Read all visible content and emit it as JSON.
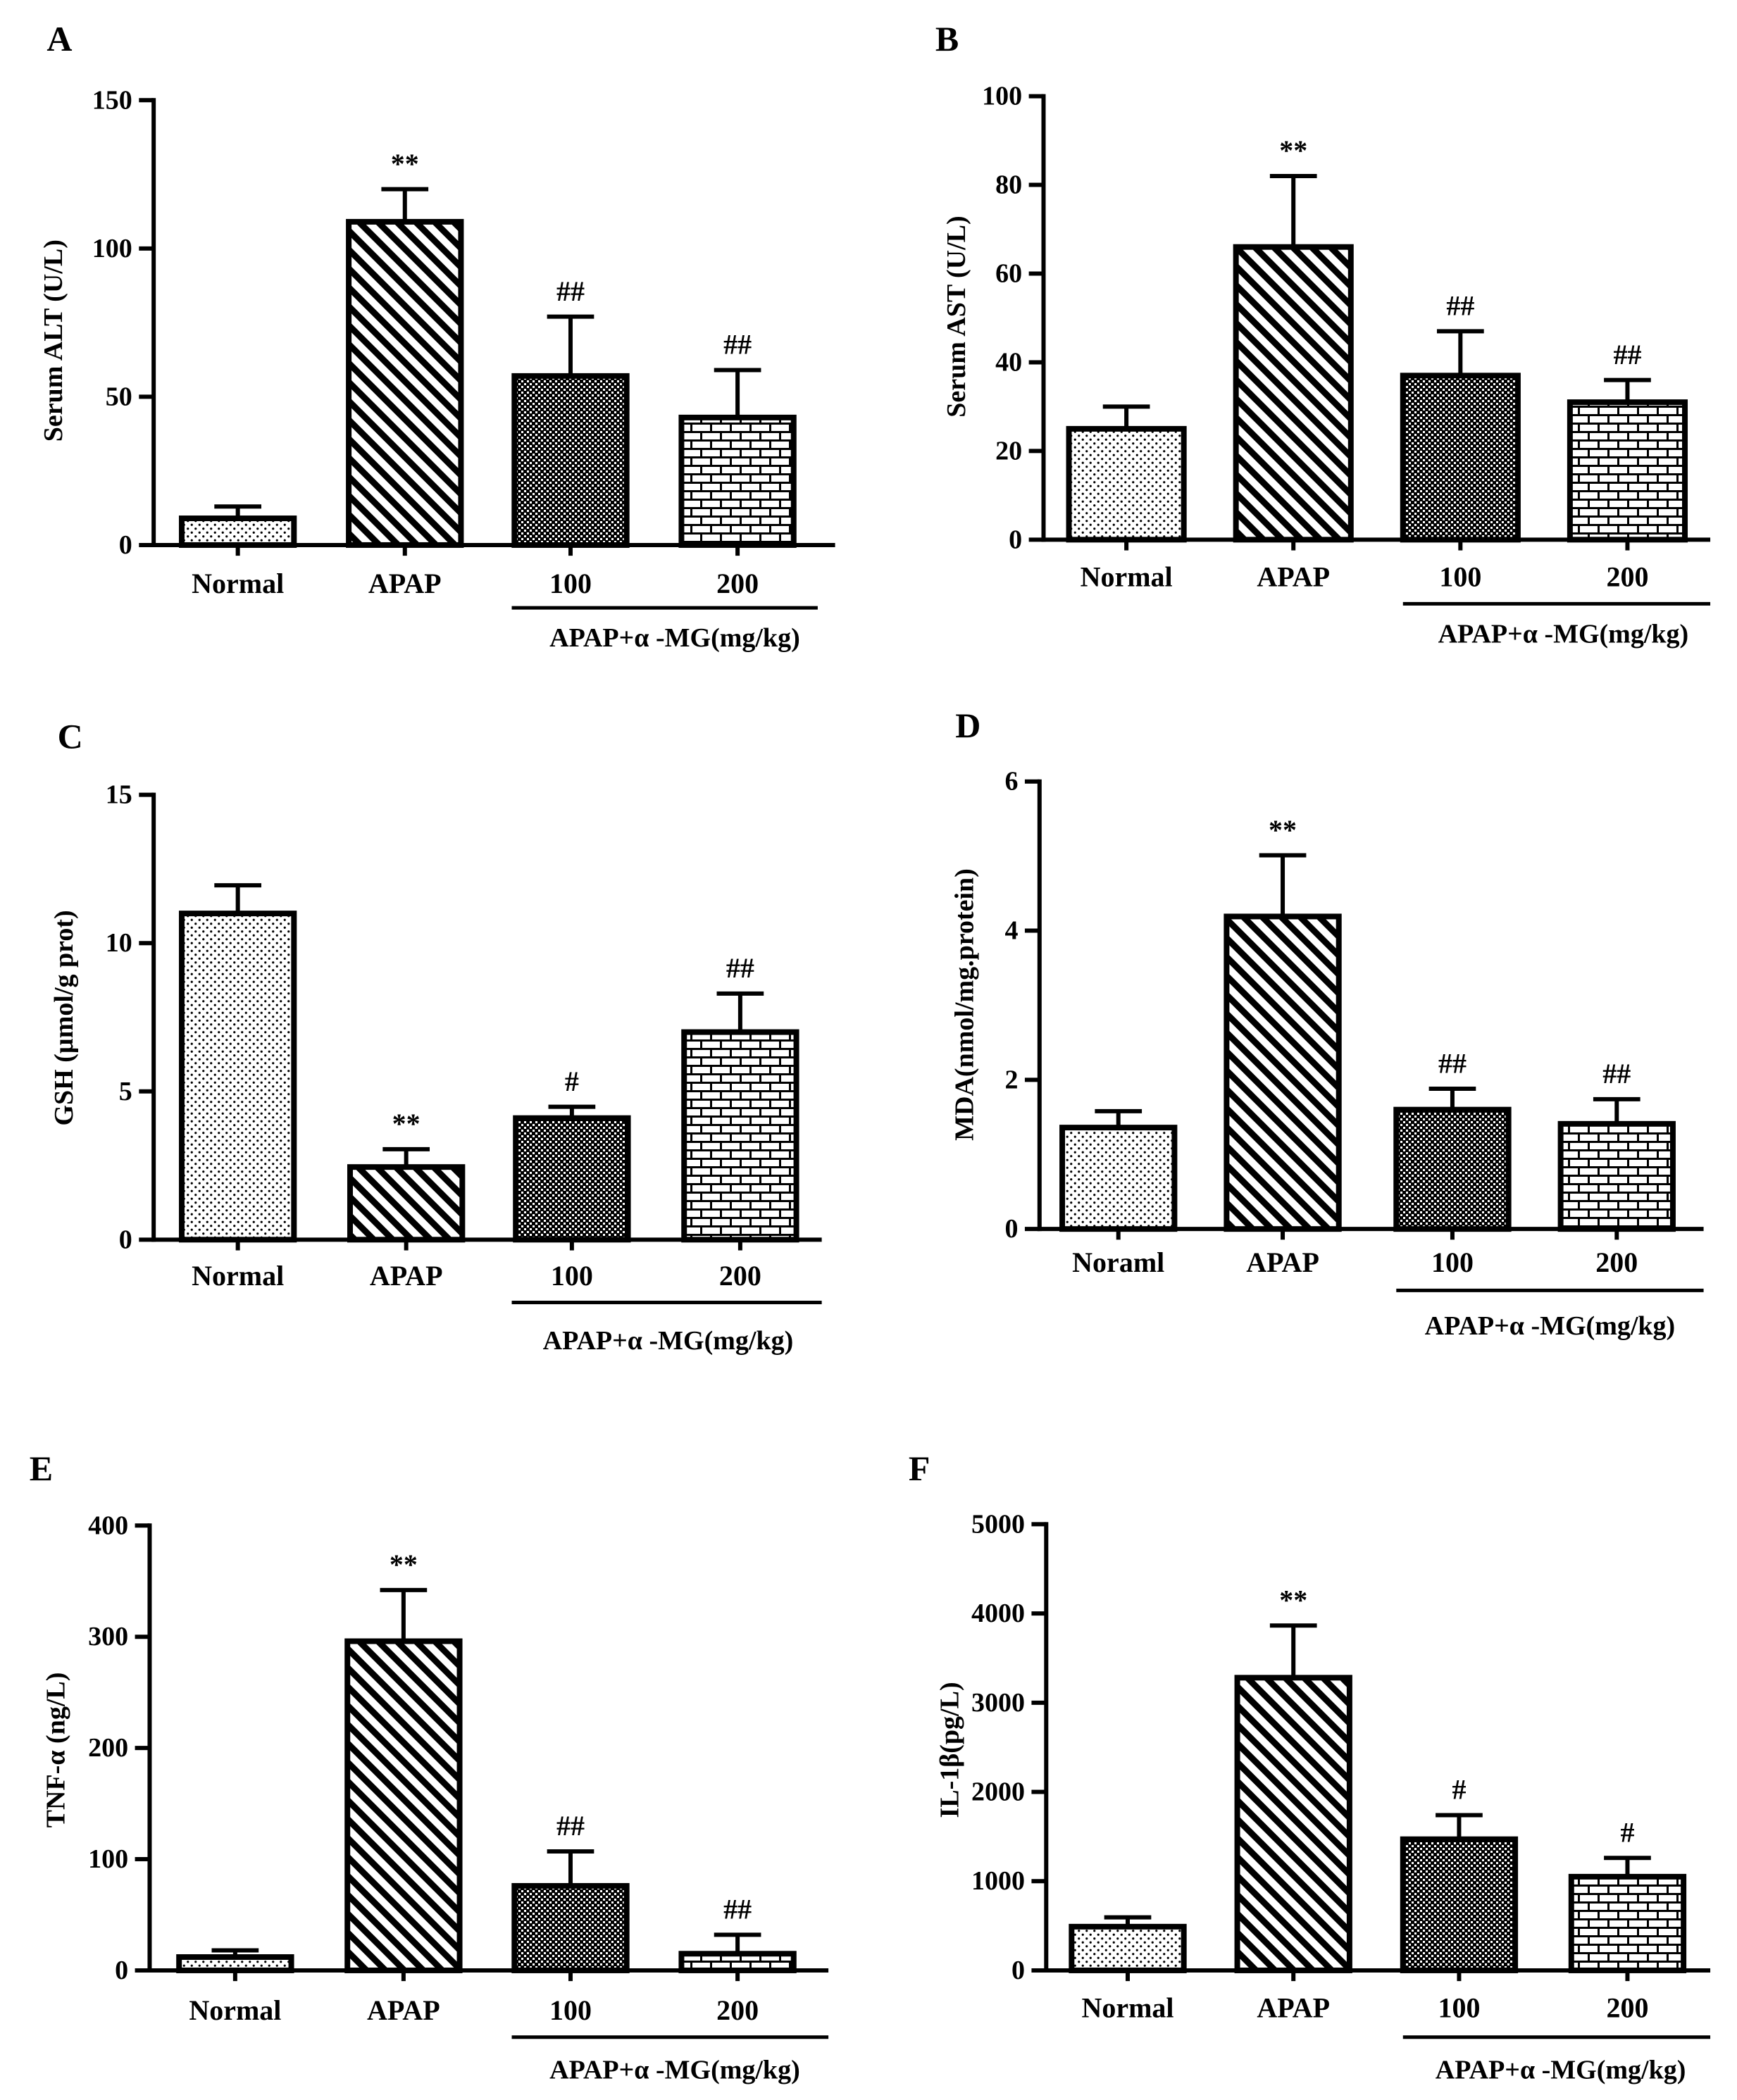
{
  "colors": {
    "ink": "#000000",
    "background": "#ffffff"
  },
  "chart_data": [
    {
      "panel": "A",
      "type": "bar",
      "ylabel": "Serum ALT (U/L)",
      "ylim": [
        0,
        150
      ],
      "y_ticks": [
        0,
        50,
        100,
        150
      ],
      "categories": [
        "Normal",
        "APAP",
        "100",
        "200"
      ],
      "values": [
        9,
        109,
        57,
        43
      ],
      "errors": [
        4,
        11,
        20,
        16
      ],
      "annotations": [
        "",
        "**",
        "##",
        "##"
      ],
      "group_label": "APAP+α -MG(mg/kg)"
    },
    {
      "panel": "B",
      "type": "bar",
      "ylabel": "Serum AST (U/L)",
      "ylim": [
        0,
        100
      ],
      "y_ticks": [
        0,
        20,
        40,
        60,
        80,
        100
      ],
      "categories": [
        "Normal",
        "APAP",
        "100",
        "200"
      ],
      "values": [
        25,
        66,
        37,
        31
      ],
      "errors": [
        5,
        16,
        10,
        5
      ],
      "annotations": [
        "",
        "**",
        "##",
        "##"
      ],
      "group_label": "APAP+α -MG(mg/kg)"
    },
    {
      "panel": "C",
      "type": "bar",
      "ylabel": "GSH (µmol/g prot)",
      "ylim": [
        0,
        15
      ],
      "y_ticks": [
        0,
        5,
        10,
        15
      ],
      "categories": [
        "Normal",
        "APAP",
        "100",
        "200"
      ],
      "values": [
        11.0,
        2.45,
        4.1,
        7.0
      ],
      "errors": [
        0.95,
        0.6,
        0.38,
        1.3
      ],
      "annotations": [
        "",
        "**",
        "#",
        "##"
      ],
      "group_label": "APAP+α -MG(mg/kg)"
    },
    {
      "panel": "D",
      "type": "bar",
      "ylabel": "MDA(nmol/mg.protein)",
      "ylim": [
        0,
        6
      ],
      "y_ticks": [
        0,
        2,
        4,
        6
      ],
      "categories": [
        "Noraml",
        "APAP",
        "100",
        "200"
      ],
      "values": [
        1.36,
        4.19,
        1.6,
        1.41
      ],
      "errors": [
        0.22,
        0.82,
        0.28,
        0.33
      ],
      "annotations": [
        "",
        "**",
        "##",
        "##"
      ],
      "group_label": "APAP+α -MG(mg/kg)"
    },
    {
      "panel": "E",
      "type": "bar",
      "ylabel": "TNF-α (ng/L)",
      "ylim": [
        0,
        400
      ],
      "y_ticks": [
        0,
        100,
        200,
        300,
        400
      ],
      "categories": [
        "Normal",
        "APAP",
        "100",
        "200"
      ],
      "values": [
        12,
        296,
        76,
        15
      ],
      "errors": [
        6,
        46,
        31,
        17
      ],
      "annotations": [
        "",
        "**",
        "##",
        "##"
      ],
      "group_label": "APAP+α -MG(mg/kg)"
    },
    {
      "panel": "F",
      "type": "bar",
      "ylabel": "IL-1β(pg/L)",
      "ylim": [
        0,
        5000
      ],
      "y_ticks": [
        0,
        1000,
        2000,
        3000,
        4000,
        5000
      ],
      "categories": [
        "Normal",
        "APAP",
        "100",
        "200"
      ],
      "values": [
        490,
        3280,
        1470,
        1050
      ],
      "errors": [
        105,
        585,
        270,
        210
      ],
      "annotations": [
        "",
        "**",
        "#",
        "#"
      ],
      "group_label": "APAP+α -MG(mg/kg)"
    }
  ]
}
